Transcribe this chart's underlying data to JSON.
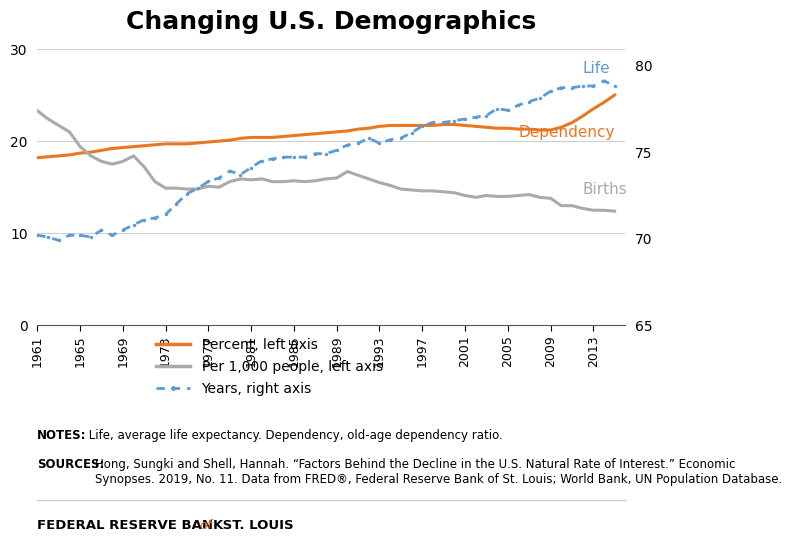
{
  "title": "Changing U.S. Demographics",
  "title_fontsize": 18,
  "years": [
    1961,
    1962,
    1963,
    1964,
    1965,
    1966,
    1967,
    1968,
    1969,
    1970,
    1971,
    1972,
    1973,
    1974,
    1975,
    1976,
    1977,
    1978,
    1979,
    1980,
    1981,
    1982,
    1983,
    1984,
    1985,
    1986,
    1987,
    1988,
    1989,
    1990,
    1991,
    1992,
    1993,
    1994,
    1995,
    1996,
    1997,
    1998,
    1999,
    2000,
    2001,
    2002,
    2003,
    2004,
    2005,
    2006,
    2007,
    2008,
    2009,
    2010,
    2011,
    2012,
    2013,
    2014,
    2015
  ],
  "dependency": [
    18.2,
    18.3,
    18.4,
    18.5,
    18.7,
    18.8,
    19.0,
    19.2,
    19.3,
    19.4,
    19.5,
    19.6,
    19.7,
    19.7,
    19.7,
    19.8,
    19.9,
    20.0,
    20.1,
    20.3,
    20.4,
    20.4,
    20.4,
    20.5,
    20.6,
    20.7,
    20.8,
    20.9,
    21.0,
    21.1,
    21.3,
    21.4,
    21.6,
    21.7,
    21.7,
    21.7,
    21.7,
    21.7,
    21.8,
    21.8,
    21.7,
    21.6,
    21.5,
    21.4,
    21.4,
    21.3,
    21.3,
    21.2,
    21.2,
    21.5,
    22.0,
    22.7,
    23.5,
    24.2,
    25.0
  ],
  "births": [
    23.3,
    22.4,
    21.7,
    21.0,
    19.4,
    18.4,
    17.8,
    17.5,
    17.8,
    18.4,
    17.2,
    15.6,
    14.9,
    14.9,
    14.8,
    14.8,
    15.1,
    15.0,
    15.6,
    15.9,
    15.8,
    15.9,
    15.6,
    15.6,
    15.7,
    15.6,
    15.7,
    15.9,
    16.0,
    16.7,
    16.3,
    15.9,
    15.5,
    15.2,
    14.8,
    14.7,
    14.6,
    14.6,
    14.5,
    14.4,
    14.1,
    13.9,
    14.1,
    14.0,
    14.0,
    14.1,
    14.2,
    13.9,
    13.8,
    13.0,
    13.0,
    12.7,
    12.5,
    12.5,
    12.4
  ],
  "life": [
    70.2,
    70.1,
    69.9,
    70.2,
    70.2,
    70.1,
    70.5,
    70.2,
    70.5,
    70.8,
    71.1,
    71.2,
    71.4,
    72.0,
    72.6,
    72.9,
    73.3,
    73.5,
    73.9,
    73.7,
    74.1,
    74.5,
    74.6,
    74.7,
    74.7,
    74.7,
    74.9,
    74.9,
    75.1,
    75.4,
    75.5,
    75.8,
    75.5,
    75.7,
    75.8,
    76.1,
    76.5,
    76.7,
    76.7,
    76.8,
    76.9,
    77.0,
    77.1,
    77.5,
    77.4,
    77.7,
    77.9,
    78.1,
    78.5,
    78.7,
    78.7,
    78.8,
    78.8,
    79.1,
    78.8
  ],
  "dependency_color": "#E87722",
  "births_color": "#AAAAAA",
  "life_color": "#5B9BD5",
  "left_ylim": [
    0,
    32
  ],
  "right_ylim": [
    65,
    82
  ],
  "left_yticks": [
    0,
    10,
    20,
    30
  ],
  "right_yticks": [
    65,
    70,
    75,
    80
  ],
  "xtick_years": [
    1961,
    1965,
    1969,
    1973,
    1977,
    1981,
    1985,
    1989,
    1993,
    1997,
    2001,
    2005,
    2009,
    2013
  ],
  "legend_entries": [
    "Percent, left axis",
    "Per 1,000 people, left axis",
    "Years, right axis"
  ],
  "label_dependency": "Dependency",
  "label_births": "Births",
  "label_life": "Life",
  "notes_bold": "NOTES:",
  "notes_rest": " Life, average life expectancy. Dependency, old-age dependency ratio.",
  "sources_bold": "SOURCES:",
  "sources_rest": " Hong, Sungki and Shell, Hannah. “Factors Behind the Decline in the U.S. Natural Rate of Interest.” Economic Synopses. 2019, No. 11. Data from FRED®, Federal Reserve Bank of St. Louis; World Bank, UN Population Database.",
  "footer_bank": "FEDERAL RESERVE BANK ",
  "footer_of": "of",
  "footer_stl": " ST. LOUIS",
  "background_color": "#FFFFFF"
}
